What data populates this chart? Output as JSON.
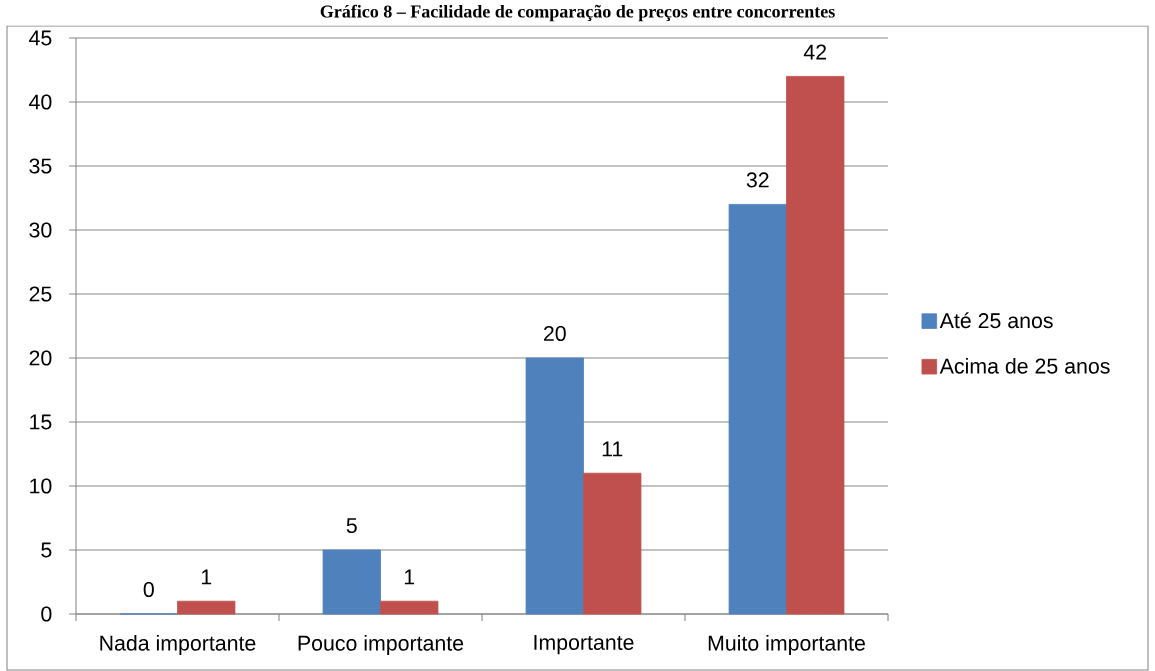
{
  "chart_data": {
    "type": "bar",
    "title": "Gráfico 8 – Facilidade de comparação de preços entre concorrentes",
    "categories": [
      "Nada importante",
      "Pouco importante",
      "Importante",
      "Muito importante"
    ],
    "series": [
      {
        "name": "Até 25 anos",
        "color": "#4f81bd",
        "values": [
          0,
          5,
          20,
          32
        ]
      },
      {
        "name": "Acima de 25 anos",
        "color": "#c0504d",
        "values": [
          1,
          1,
          11,
          42
        ]
      }
    ],
    "ylim": [
      0,
      45
    ],
    "yticks": [
      0,
      5,
      10,
      15,
      20,
      25,
      30,
      35,
      40,
      45
    ],
    "grid": "y",
    "legend": "right",
    "data_labels": true
  }
}
